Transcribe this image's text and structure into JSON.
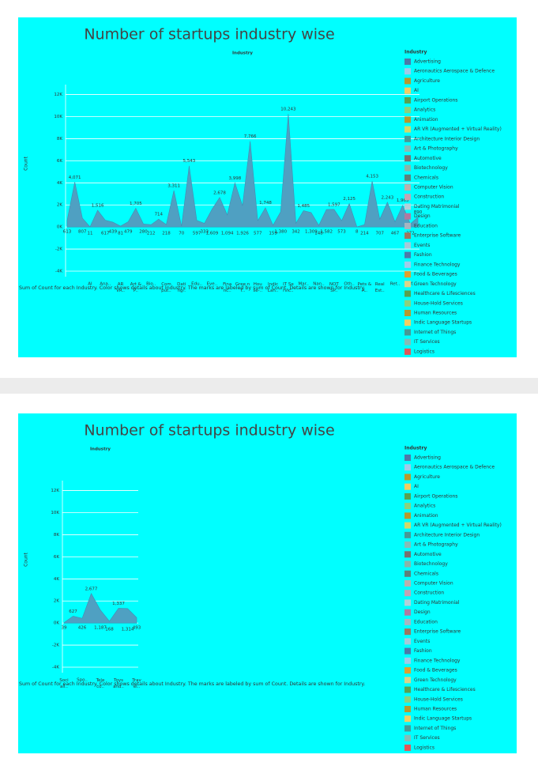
{
  "chart_data": [
    {
      "type": "area",
      "title": "Number of startups industry wise",
      "header": "Industry",
      "y_label": "Count",
      "footnote": "Sum of Count for each Industry.  Color shows details about Industry.  The marks are labeled by sum of Count.  Details are shown for Industry.",
      "color": "#4fa0c2",
      "categories": [
        null,
        null,
        null,
        "AI",
        null,
        "Ana..",
        null,
        "AR VR..",
        null,
        "Art & P..",
        null,
        "Bio..",
        null,
        "Com put..",
        null,
        "Dati ng..",
        null,
        "Edu..",
        null,
        "Eve..",
        null,
        "Fina nc..",
        null,
        "Gree n T..",
        null,
        "Hou se-..",
        null,
        "Indic Lan..",
        null,
        "IT Se rvic..",
        null,
        "Mar..",
        null,
        "Nan..",
        null,
        "NOT SP..",
        null,
        "Oth..",
        null,
        "Pets & A..",
        null,
        "Real Est..",
        null,
        "Ret..",
        null,
        "Saf..",
        null
      ],
      "values": [
        613,
        4071,
        807,
        11,
        1516,
        617,
        439,
        81,
        479,
        1705,
        280,
        212,
        714,
        218,
        3311,
        70,
        5543,
        597,
        333,
        1609,
        2678,
        1094,
        3998,
        1926,
        7766,
        577,
        1748,
        159,
        1380,
        10243,
        342,
        1485,
        1309,
        148,
        1582,
        1597,
        573,
        2125,
        8,
        214,
        4153,
        707,
        2243,
        467,
        1965,
        272,
        890
      ],
      "value_labels": [
        "613",
        "4,071",
        "807",
        "11",
        "1,516",
        "617",
        "439",
        "81",
        "479",
        "1,705",
        "280",
        "212",
        "714",
        "218",
        "3,311",
        "70",
        "5,543",
        "597",
        "333",
        "1,609",
        "2,678",
        "1,094",
        "3,998",
        "1,926",
        "7,766",
        "577",
        "1,748",
        "159",
        "1,380",
        "10,243",
        "342",
        "1,485",
        "1,309",
        "148",
        "1,582",
        "1,597",
        "573",
        "2,125",
        "8",
        "214",
        "4,153",
        "707",
        "2,243",
        "467",
        "1,965",
        "272",
        "890"
      ],
      "ylim": [
        -4500,
        12900
      ],
      "yticks": [
        {
          "value": -4000,
          "label": "-4K"
        },
        {
          "value": -2000,
          "label": "-2K"
        },
        {
          "value": 0,
          "label": "0K"
        },
        {
          "value": 2000,
          "label": "2K"
        },
        {
          "value": 4000,
          "label": "4K"
        },
        {
          "value": 6000,
          "label": "6K"
        },
        {
          "value": 8000,
          "label": "8K"
        },
        {
          "value": 10000,
          "label": "10K"
        },
        {
          "value": 12000,
          "label": "12K"
        }
      ],
      "grid": true,
      "legend_title": "Industry",
      "legend": [
        {
          "name": "Advertising",
          "color": "#4e79a7"
        },
        {
          "name": "Aeronautics Aerospace & Defence",
          "color": "#a0cbe8"
        },
        {
          "name": "Agriculture",
          "color": "#b6992d"
        },
        {
          "name": "AI",
          "color": "#f1ce63"
        },
        {
          "name": "Airport Operations",
          "color": "#59a14f"
        },
        {
          "name": "Analytics",
          "color": "#8cd17d"
        },
        {
          "name": "Animation",
          "color": "#b6992d"
        },
        {
          "name": "AR VR (Augmented + Virtual Reality)",
          "color": "#d4d86a"
        },
        {
          "name": "Architecture Interior Design",
          "color": "#499894"
        },
        {
          "name": "Art & Photography",
          "color": "#86bcb6"
        },
        {
          "name": "Automotive",
          "color": "#79706e"
        },
        {
          "name": "Biotechnology",
          "color": "#8ab5a8"
        },
        {
          "name": "Chemicals",
          "color": "#5f7f7a"
        },
        {
          "name": "Computer Vision",
          "color": "#bab0ac"
        },
        {
          "name": "Construction",
          "color": "#c2a3b4"
        },
        {
          "name": "Dating Matrimonial",
          "color": "#b3cfd8"
        },
        {
          "name": "Design",
          "color": "#b07aa1"
        },
        {
          "name": "Education",
          "color": "#a8b5c0"
        },
        {
          "name": "Enterprise Software",
          "color": "#9d7660"
        },
        {
          "name": "Events",
          "color": "#a6c9d8"
        },
        {
          "name": "Fashion",
          "color": "#4e79a7"
        },
        {
          "name": "Finance Technology",
          "color": "#a0cbe8"
        },
        {
          "name": "Food & Beverages",
          "color": "#e0a030"
        },
        {
          "name": "Green Technology",
          "color": "#d9d48a"
        },
        {
          "name": "Healthcare & Lifesciences",
          "color": "#59a14f"
        },
        {
          "name": "House-Hold Services",
          "color": "#8cd17d"
        },
        {
          "name": "Human Resources",
          "color": "#b6992d"
        },
        {
          "name": "Indic Language Startups",
          "color": "#f1ce63"
        },
        {
          "name": "Internet of Things",
          "color": "#499894"
        },
        {
          "name": "IT Services",
          "color": "#86bcb6"
        },
        {
          "name": "Logistics",
          "color": "#e15759"
        }
      ]
    },
    {
      "type": "area",
      "title": "Number of startups industry wise",
      "header": "Industry",
      "y_label": "Count",
      "footnote": "Sum of Count for each Industry.  Color shows details about Industry.  The marks are labeled by sum of Count.  Details are shown for Industry.",
      "color": "#4fa0c2",
      "categories": [
        "Soci ali..",
        null,
        "Spo..",
        null,
        "Tele co..",
        null,
        "Toys and..",
        null,
        "Trav el.."
      ],
      "values": [
        39,
        627,
        426,
        2677,
        1187,
        168,
        1337,
        1314,
        493
      ],
      "value_labels": [
        "39",
        "627",
        "426",
        "2,677",
        "1,187",
        "168",
        "1,337",
        "1,314",
        "493"
      ],
      "ylim": [
        -4500,
        12900
      ],
      "yticks": [
        {
          "value": -4000,
          "label": "-4K"
        },
        {
          "value": -2000,
          "label": "-2K"
        },
        {
          "value": 0,
          "label": "0K"
        },
        {
          "value": 2000,
          "label": "2K"
        },
        {
          "value": 4000,
          "label": "4K"
        },
        {
          "value": 6000,
          "label": "6K"
        },
        {
          "value": 8000,
          "label": "8K"
        },
        {
          "value": 10000,
          "label": "10K"
        },
        {
          "value": 12000,
          "label": "12K"
        }
      ],
      "grid": true,
      "legend_title": "Industry",
      "legend": [
        {
          "name": "Advertising",
          "color": "#4e79a7"
        },
        {
          "name": "Aeronautics Aerospace & Defence",
          "color": "#a0cbe8"
        },
        {
          "name": "Agriculture",
          "color": "#b6992d"
        },
        {
          "name": "AI",
          "color": "#f1ce63"
        },
        {
          "name": "Airport Operations",
          "color": "#59a14f"
        },
        {
          "name": "Analytics",
          "color": "#8cd17d"
        },
        {
          "name": "Animation",
          "color": "#b6992d"
        },
        {
          "name": "AR VR (Augmented + Virtual Reality)",
          "color": "#d4d86a"
        },
        {
          "name": "Architecture Interior Design",
          "color": "#499894"
        },
        {
          "name": "Art & Photography",
          "color": "#86bcb6"
        },
        {
          "name": "Automotive",
          "color": "#79706e"
        },
        {
          "name": "Biotechnology",
          "color": "#8ab5a8"
        },
        {
          "name": "Chemicals",
          "color": "#5f7f7a"
        },
        {
          "name": "Computer Vision",
          "color": "#bab0ac"
        },
        {
          "name": "Construction",
          "color": "#c2a3b4"
        },
        {
          "name": "Dating Matrimonial",
          "color": "#b3cfd8"
        },
        {
          "name": "Design",
          "color": "#b07aa1"
        },
        {
          "name": "Education",
          "color": "#a8b5c0"
        },
        {
          "name": "Enterprise Software",
          "color": "#9d7660"
        },
        {
          "name": "Events",
          "color": "#a6c9d8"
        },
        {
          "name": "Fashion",
          "color": "#4e79a7"
        },
        {
          "name": "Finance Technology",
          "color": "#a0cbe8"
        },
        {
          "name": "Food & Beverages",
          "color": "#e0a030"
        },
        {
          "name": "Green Technology",
          "color": "#d9d48a"
        },
        {
          "name": "Healthcare & Lifesciences",
          "color": "#59a14f"
        },
        {
          "name": "House-Hold Services",
          "color": "#8cd17d"
        },
        {
          "name": "Human Resources",
          "color": "#b6992d"
        },
        {
          "name": "Indic Language Startups",
          "color": "#f1ce63"
        },
        {
          "name": "Internet of Things",
          "color": "#499894"
        },
        {
          "name": "IT Services",
          "color": "#86bcb6"
        },
        {
          "name": "Logistics",
          "color": "#e15759"
        }
      ]
    }
  ]
}
